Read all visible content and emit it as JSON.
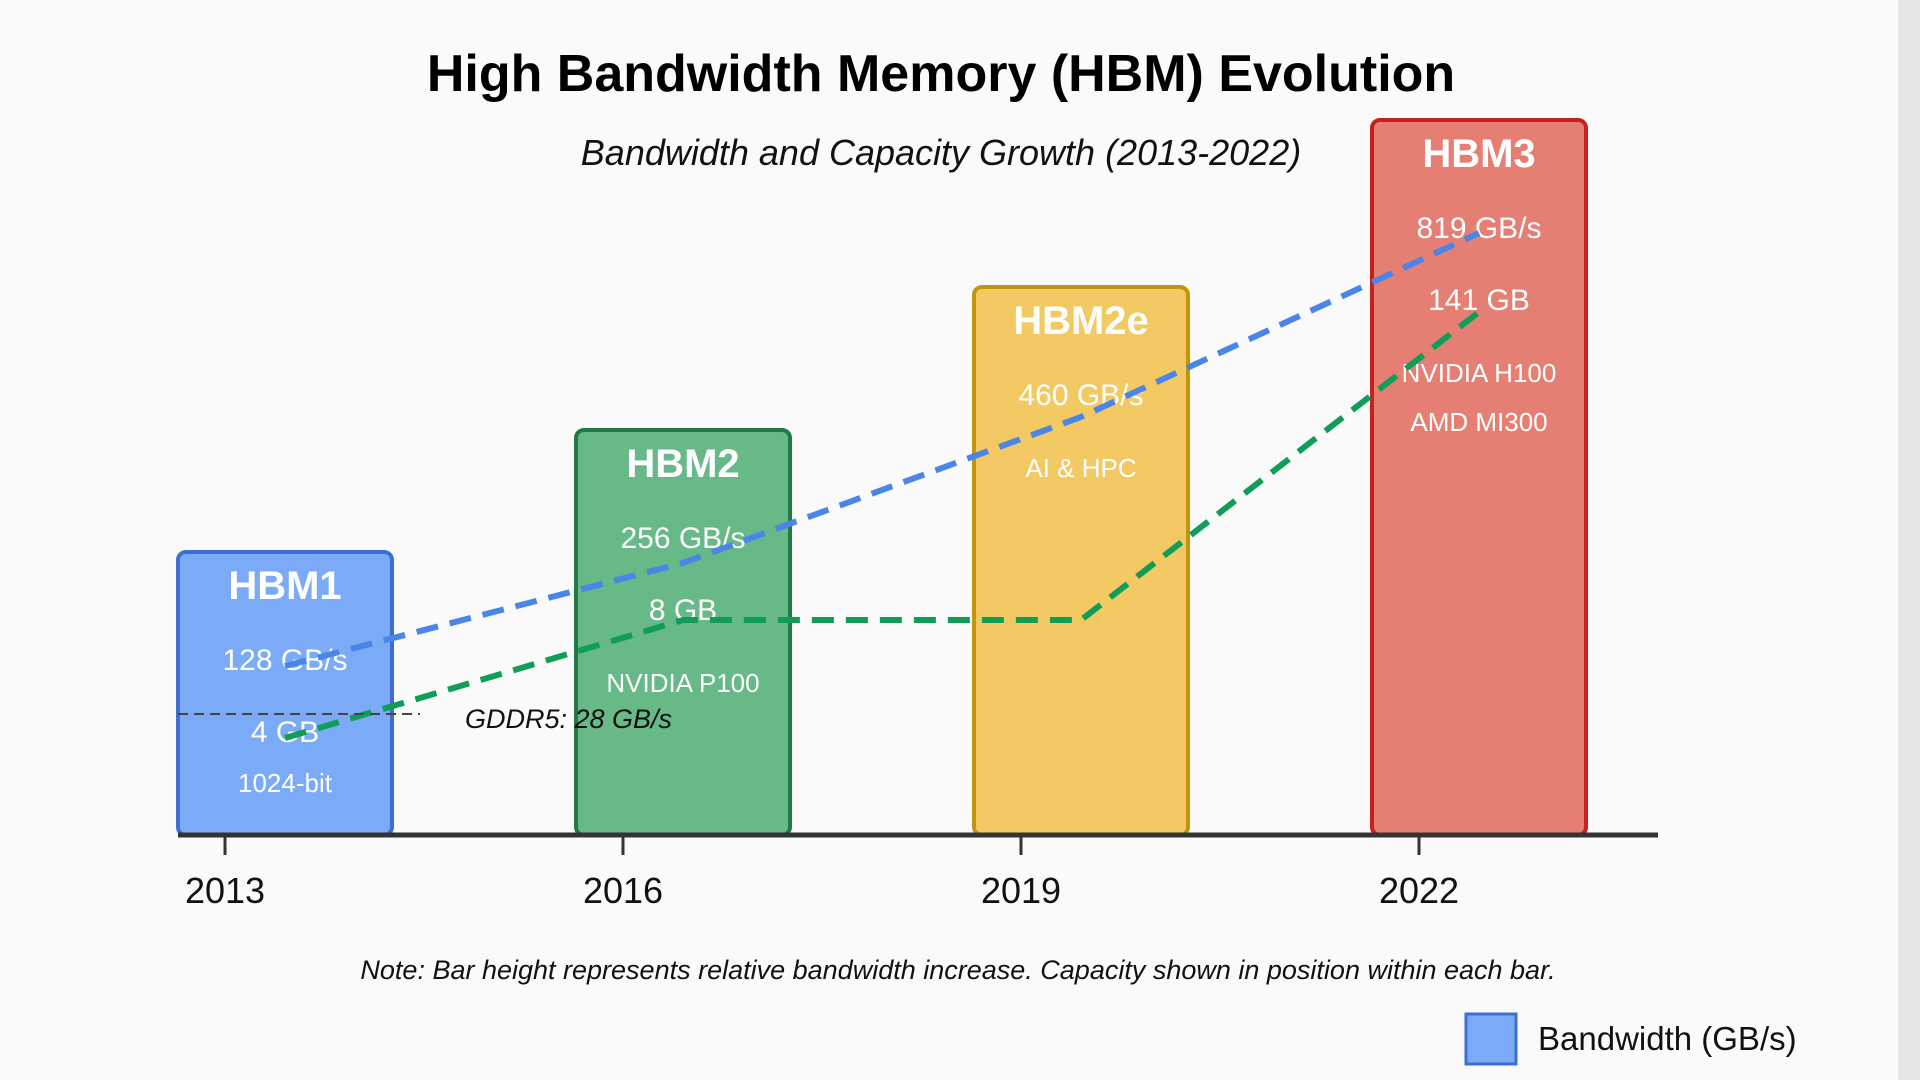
{
  "chart_data": {
    "type": "bar",
    "title": "High Bandwidth Memory (HBM) Evolution",
    "subtitle": "Bandwidth and Capacity Growth (2013-2022)",
    "categories": [
      "2013",
      "2016",
      "2019",
      "2022"
    ],
    "series": [
      {
        "name": "Bandwidth (GB/s)",
        "values": [
          128,
          256,
          460,
          819
        ],
        "labels": [
          "128 GB/s",
          "256 GB/s",
          "460 GB/s",
          "819 GB/s"
        ]
      },
      {
        "values": [
          4,
          8,
          8,
          141
        ],
        "labels": [
          "4 GB",
          "8 GB",
          "",
          "141 GB"
        ]
      }
    ],
    "bars": [
      {
        "name": "HBM1",
        "color": "#7baaf7",
        "border": "#3c6fd1",
        "notes": [
          "1024-bit"
        ]
      },
      {
        "name": "HBM2",
        "color": "#67b988",
        "border": "#1f7a45",
        "notes": [
          "NVIDIA P100"
        ]
      },
      {
        "name": "HBM2e",
        "color": "#f3c963",
        "border": "#c2950f",
        "notes": [
          "AI & HPC"
        ]
      },
      {
        "name": "HBM3",
        "color": "#e57f74",
        "border": "#c5221f",
        "notes": [
          "NVIDIA H100",
          "AMD MI300"
        ]
      }
    ],
    "reference_line": {
      "value": 28,
      "label": "GDDR5: 28 GB/s"
    },
    "line_colors": {
      "bandwidth": "#4a86e8",
      "capacity": "#0f9d58"
    },
    "note": "Note: Bar height represents relative bandwidth increase. Capacity shown in position within each bar.",
    "legend": {
      "position": "bottom-right",
      "label": "Bandwidth (GB/s)",
      "color": "#7baaf7",
      "border": "#3c6fd1"
    },
    "grid": false
  }
}
